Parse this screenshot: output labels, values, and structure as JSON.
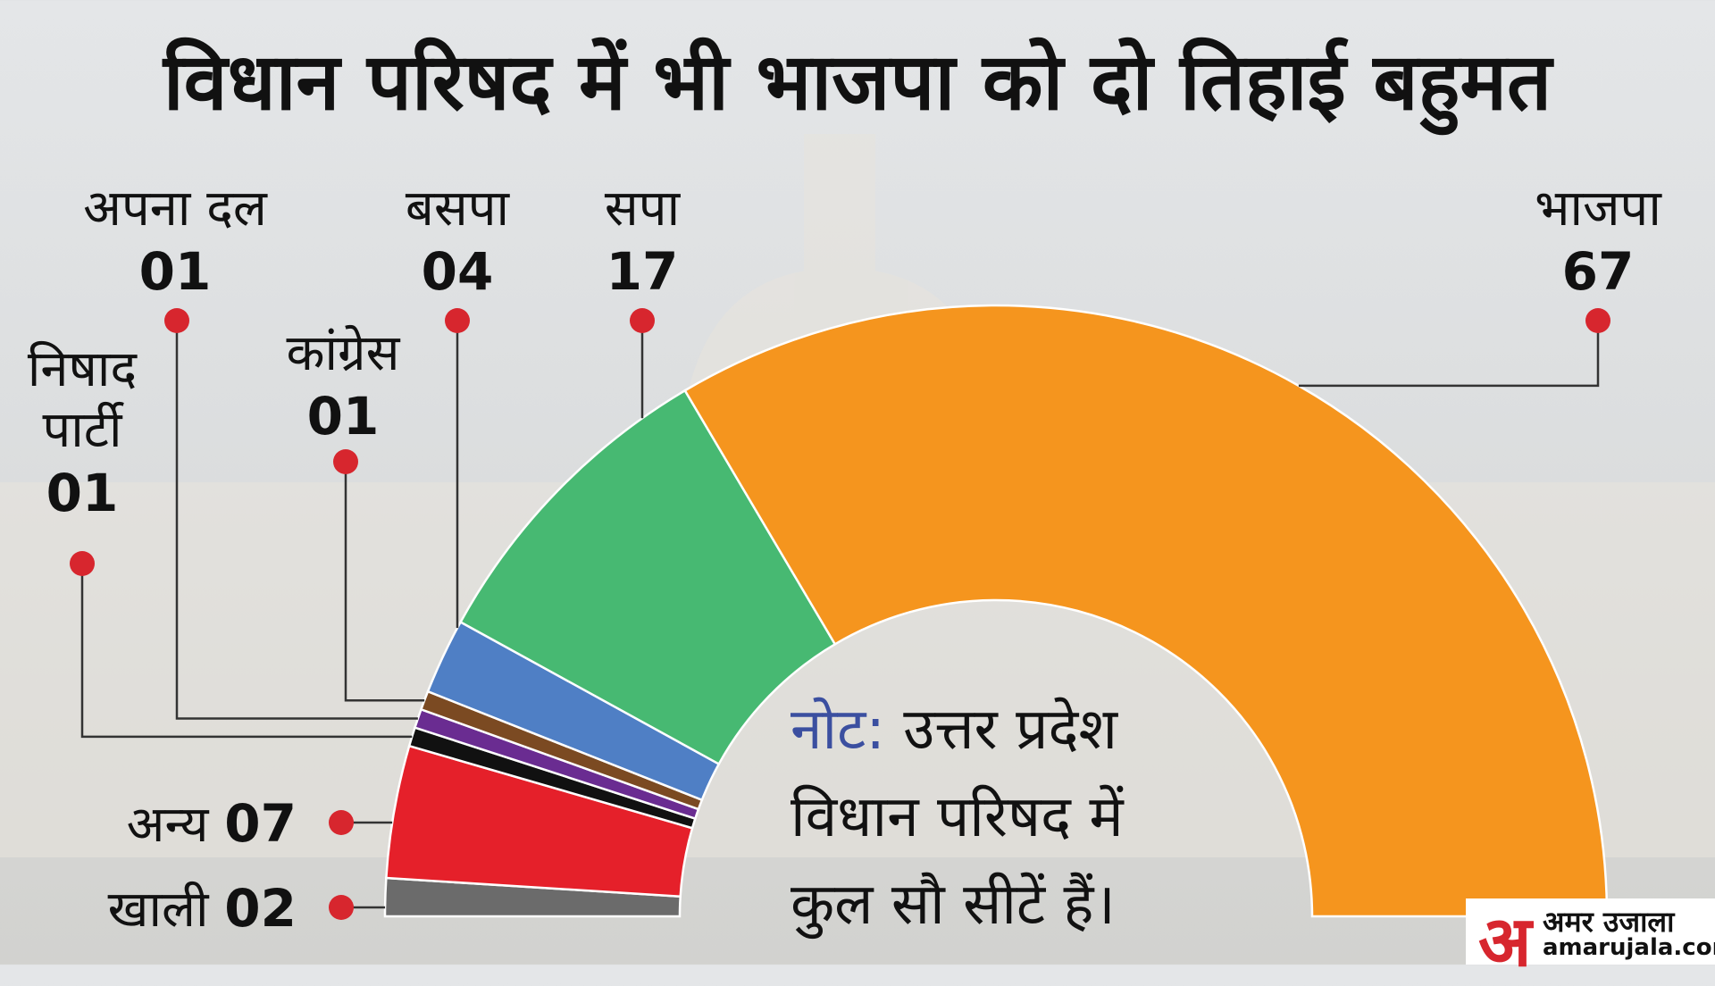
{
  "chart_data": {
    "type": "donut",
    "title": "विधान परिषद में भी भाजपा को दो तिहाई बहुमत",
    "categories": [
      "खाली",
      "अन्य",
      "निषाद पार्टी",
      "अपना दल",
      "कांग्रेस",
      "बसपा",
      "सपा",
      "भाजपा"
    ],
    "values": [
      2,
      7,
      1,
      1,
      1,
      4,
      17,
      67
    ],
    "value_labels": [
      "02",
      "07",
      "01",
      "01",
      "01",
      "04",
      "17",
      "67"
    ],
    "colors": [
      "#6b6b6b",
      "#e5202a",
      "#111111",
      "#6a2c91",
      "#7b4a22",
      "#4f7fc5",
      "#47b972",
      "#f5951e"
    ],
    "note_label": "नोट:",
    "note_lines": [
      "उत्तर प्रदेश",
      "विधान परिषद में",
      "कुल सौ सीटें हैं।"
    ]
  },
  "logo": {
    "mark": "अ",
    "name": "अमर उजाला",
    "url": "amarujala.com"
  }
}
